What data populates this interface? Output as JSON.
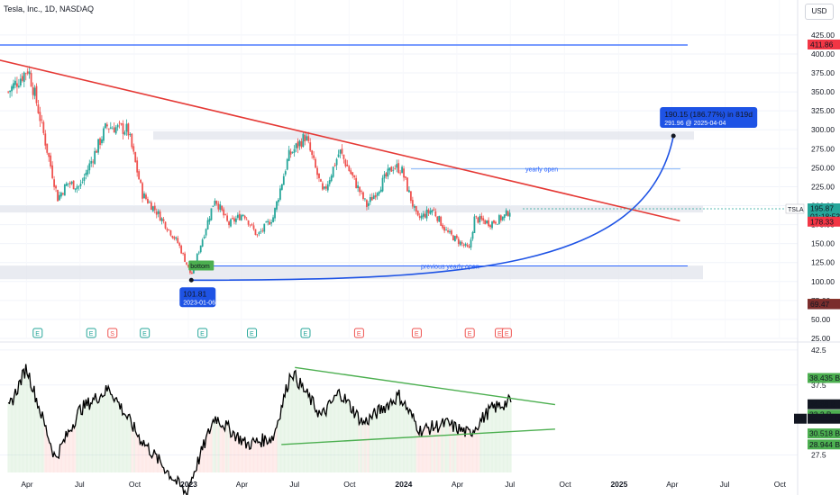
{
  "header": {
    "title": "Tesla, Inc., 1D, NASDAQ",
    "currency": "USD"
  },
  "colors": {
    "up": "#26a69a",
    "down": "#ef5350",
    "trend": "#e53935",
    "blue": "#1e53e5",
    "hline": "#2962ff",
    "green": "#4caf50",
    "zone": "#e0e3eb",
    "text": "#131722"
  },
  "chart_data": [
    {
      "type": "candlestick",
      "symbol": "TSLA",
      "x_ticks": [
        "Apr",
        "Jul",
        "Oct",
        "2023",
        "Apr",
        "Jul",
        "Oct",
        "2024",
        "Apr",
        "Jul",
        "Oct",
        "2025",
        "Apr",
        "Jul",
        "Oct"
      ],
      "y_ticks": [
        425,
        400,
        375,
        350,
        325,
        300,
        275,
        250,
        225,
        200,
        175,
        150,
        125,
        100,
        75,
        50,
        25
      ],
      "ylim": [
        25,
        432
      ],
      "anchor_points": [
        {
          "t": "2022-03-01",
          "v": 350
        },
        {
          "t": "2022-04-04",
          "v": 381
        },
        {
          "t": "2022-04-20",
          "v": 330
        },
        {
          "t": "2022-05-24",
          "v": 210
        },
        {
          "t": "2022-06-10",
          "v": 230
        },
        {
          "t": "2022-07-01",
          "v": 225
        },
        {
          "t": "2022-08-15",
          "v": 305
        },
        {
          "t": "2022-09-20",
          "v": 300
        },
        {
          "t": "2022-10-15",
          "v": 215
        },
        {
          "t": "2022-11-10",
          "v": 190
        },
        {
          "t": "2022-12-15",
          "v": 150
        },
        {
          "t": "2023-01-06",
          "v": 108
        },
        {
          "t": "2023-02-15",
          "v": 210
        },
        {
          "t": "2023-03-10",
          "v": 175
        },
        {
          "t": "2023-04-05",
          "v": 190
        },
        {
          "t": "2023-04-28",
          "v": 160
        },
        {
          "t": "2023-05-25",
          "v": 185
        },
        {
          "t": "2023-06-20",
          "v": 265
        },
        {
          "t": "2023-07-19",
          "v": 292
        },
        {
          "t": "2023-08-18",
          "v": 215
        },
        {
          "t": "2023-09-15",
          "v": 272
        },
        {
          "t": "2023-10-31",
          "v": 200
        },
        {
          "t": "2023-12-15",
          "v": 252
        },
        {
          "t": "2023-12-29",
          "v": 248
        },
        {
          "t": "2024-01-25",
          "v": 182
        },
        {
          "t": "2024-02-20",
          "v": 195
        },
        {
          "t": "2024-03-15",
          "v": 165
        },
        {
          "t": "2024-04-22",
          "v": 142
        },
        {
          "t": "2024-05-01",
          "v": 183
        },
        {
          "t": "2024-05-28",
          "v": 177
        },
        {
          "t": "2024-06-20",
          "v": 185
        },
        {
          "t": "2024-07-02",
          "v": 196
        }
      ],
      "horizontal_levels": [
        {
          "value": 411.86,
          "label": "411.86"
        },
        {
          "value": 248.4,
          "label": "yearly open"
        },
        {
          "value": 120.5,
          "label": "previous yearly open"
        }
      ],
      "zones": [
        [
          287,
          298
        ],
        [
          191,
          200
        ],
        [
          103,
          121
        ]
      ],
      "trendline": [
        {
          "t": "2022-01-01",
          "v": 400
        },
        {
          "t": "2025-04-15",
          "v": 180
        }
      ],
      "projection_curve": {
        "from": {
          "t": "2023-01-06",
          "v": 101.81
        },
        "to": {
          "t": "2025-04-04",
          "v": 291.96
        }
      },
      "annotations": {
        "bottom_tag": "bottom",
        "low_value": "101.81",
        "low_date": "2023-01-06",
        "target_line1": "190.15 (186.77%) in 819d",
        "target_line2": "291.96 @ 2025-04-04"
      },
      "price_labels": [
        {
          "value": 411.86,
          "text": "411.86",
          "color": "#f23645"
        },
        {
          "value": 195.87,
          "text": "195.87",
          "sub": "01:18:53",
          "color": "#26a69a"
        },
        {
          "value": 178.33,
          "text": "178.33",
          "color": "#f23645"
        },
        {
          "value": 70.11,
          "text": "70.11",
          "color": "#a0432d"
        },
        {
          "value": 69.47,
          "text": "69.47",
          "color": "#7b2d2d"
        }
      ],
      "ticker_tag": "TSLA",
      "event_markers": [
        {
          "t": "2022-04-20",
          "type": "E",
          "color": "#26a69a"
        },
        {
          "t": "2022-07-20",
          "type": "E",
          "color": "#26a69a"
        },
        {
          "t": "2022-10-19",
          "type": "E",
          "color": "#26a69a"
        },
        {
          "t": "2022-08-25",
          "type": "S",
          "color": "#ef5350"
        },
        {
          "t": "2023-01-25",
          "type": "E",
          "color": "#26a69a"
        },
        {
          "t": "2023-04-19",
          "type": "E",
          "color": "#26a69a"
        },
        {
          "t": "2023-07-19",
          "type": "E",
          "color": "#26a69a"
        },
        {
          "t": "2023-10-18",
          "type": "E",
          "color": "#ef5350"
        },
        {
          "t": "2024-01-24",
          "type": "E",
          "color": "#ef5350"
        },
        {
          "t": "2024-04-23",
          "type": "E",
          "color": "#ef5350"
        },
        {
          "t": "2024-06-13",
          "type": "E",
          "color": "#ef5350"
        },
        {
          "t": "2024-06-25",
          "type": "E",
          "color": "#ef5350"
        }
      ]
    },
    {
      "type": "line",
      "name": "oscillator",
      "y_ticks": [
        42.5,
        37.5,
        27.5
      ],
      "ylim": [
        25,
        43
      ],
      "anchor_points": [
        {
          "t": "2022-03-01",
          "v": 34
        },
        {
          "t": "2022-04-01",
          "v": 40
        },
        {
          "t": "2022-05-20",
          "v": 27
        },
        {
          "t": "2022-07-01",
          "v": 34
        },
        {
          "t": "2022-08-20",
          "v": 37
        },
        {
          "t": "2022-10-10",
          "v": 30
        },
        {
          "t": "2022-12-28",
          "v": 22
        },
        {
          "t": "2023-02-15",
          "v": 33
        },
        {
          "t": "2023-04-10",
          "v": 29
        },
        {
          "t": "2023-05-25",
          "v": 30
        },
        {
          "t": "2023-06-25",
          "v": 39.5
        },
        {
          "t": "2023-08-15",
          "v": 33
        },
        {
          "t": "2023-09-15",
          "v": 36.5
        },
        {
          "t": "2023-10-25",
          "v": 32
        },
        {
          "t": "2023-12-25",
          "v": 36
        },
        {
          "t": "2024-01-30",
          "v": 31
        },
        {
          "t": "2024-03-15",
          "v": 32
        },
        {
          "t": "2024-04-22",
          "v": 30.5
        },
        {
          "t": "2024-05-28",
          "v": 34
        },
        {
          "t": "2024-07-02",
          "v": 35.2
        }
      ],
      "channel_upper": [
        {
          "t": "2023-07-01",
          "v": 40.0
        },
        {
          "t": "2024-09-15",
          "v": 34.7
        }
      ],
      "channel_lower": [
        {
          "t": "2023-07-01",
          "v": 29.0
        },
        {
          "t": "2024-09-15",
          "v": 31.2
        }
      ],
      "value_labels": [
        {
          "value": 38.435,
          "text": "38.435 B",
          "color": "#4caf50"
        },
        {
          "value": 34.68,
          "text": "34.68 B",
          "color": "#131722"
        },
        {
          "value": 33.2,
          "text": "33.2 B",
          "color": "#4caf50"
        },
        {
          "value": 32.622,
          "text": "32.622 B",
          "color": "#131722"
        },
        {
          "value": 30.518,
          "text": "30.518 B",
          "color": "#4caf50"
        },
        {
          "value": 28.944,
          "text": "28.944 B",
          "color": "#4caf50"
        }
      ],
      "side_tag": "60"
    }
  ]
}
